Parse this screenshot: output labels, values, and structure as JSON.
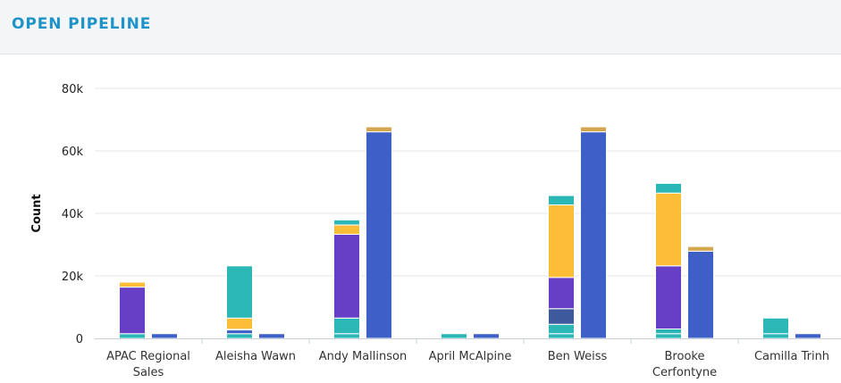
{
  "header": {
    "title": "OPEN PIPELINE"
  },
  "colors": {
    "header_bg": "#f3f5f7",
    "title": "#1e93c8",
    "teal": "#2bb7b6",
    "purple": "#663fc6",
    "yellow": "#fdbe37",
    "gold": "#d3a74e",
    "blue": "#3e5fc5",
    "navy": "#3e5a9c"
  },
  "chart_data": {
    "type": "bar",
    "stacked": true,
    "ylabel": "Count",
    "xlabel": "",
    "ylim": [
      0,
      80000
    ],
    "yticks": [
      0,
      20000,
      40000,
      60000,
      80000
    ],
    "ytick_labels": [
      "0",
      "20k",
      "40k",
      "60k",
      "80k"
    ],
    "grid": true,
    "categories": [
      [
        "APAC Regional",
        "Sales"
      ],
      [
        "Aleisha Wawn"
      ],
      [
        "Andy Mallinson"
      ],
      [
        "April McAlpine"
      ],
      [
        "Ben Weiss"
      ],
      [
        "Brooke",
        "Cerfontyne"
      ],
      [
        "Camilla Trinh"
      ]
    ],
    "stack_groups": [
      {
        "segments": [
          {
            "color": "teal",
            "values": [
              1500,
              1500,
              1500,
              1500,
              1500,
              1500,
              1500
            ]
          },
          {
            "color": "teal",
            "values": [
              0,
              0,
              5000,
              0,
              3000,
              1500,
              5000
            ]
          },
          {
            "color": "navy",
            "values": [
              0,
              0,
              0,
              0,
              5000,
              0,
              0
            ]
          },
          {
            "color": "blue",
            "values": [
              0,
              1200,
              0,
              0,
              0,
              0,
              0
            ]
          },
          {
            "color": "purple",
            "values": [
              14900,
              200,
              26800,
              0,
              10000,
              20200,
              0
            ]
          },
          {
            "color": "yellow",
            "values": [
              1600,
              3600,
              3000,
              0,
              23200,
              23300,
              0
            ]
          },
          {
            "color": "teal",
            "values": [
              0,
              16700,
              1600,
              0,
              3000,
              3100,
              0
            ]
          }
        ]
      },
      {
        "segments": [
          {
            "color": "blue",
            "values": [
              1500,
              1500,
              66100,
              1500,
              66100,
              27900,
              1500
            ]
          },
          {
            "color": "gold",
            "values": [
              0,
              0,
              1600,
              0,
              1600,
              1500,
              0
            ]
          }
        ]
      }
    ]
  }
}
